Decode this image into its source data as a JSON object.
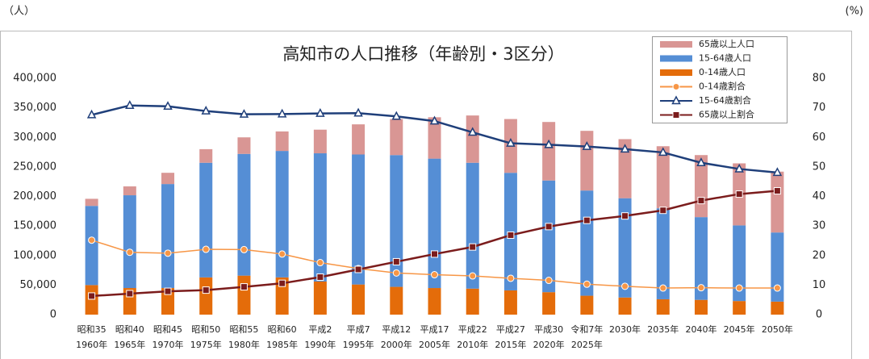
{
  "chart_data": {
    "type": "bar",
    "title": "高知市の人口推移（年齢別・3区分）",
    "left_unit": "（人）",
    "right_unit": "(%)",
    "categories": [
      [
        "昭和35",
        "1960年"
      ],
      [
        "昭和40",
        "1965年"
      ],
      [
        "昭和45",
        "1970年"
      ],
      [
        "昭和50",
        "1975年"
      ],
      [
        "昭和55",
        "1980年"
      ],
      [
        "昭和60",
        "1985年"
      ],
      [
        "平成2",
        "1990年"
      ],
      [
        "平成7",
        "1995年"
      ],
      [
        "平成12",
        "2000年"
      ],
      [
        "平成17",
        "2005年"
      ],
      [
        "平成22",
        "2010年"
      ],
      [
        "平成27",
        "2015年"
      ],
      [
        "平成30",
        "2020年"
      ],
      [
        "令和7年",
        "2025年"
      ],
      [
        "2030年"
      ],
      [
        "2035年"
      ],
      [
        "2040年"
      ],
      [
        "2045年"
      ],
      [
        "2050年"
      ]
    ],
    "series": [
      {
        "name": "65歳以上人口",
        "type": "bar",
        "color": "#d99694",
        "values": [
          12000,
          15000,
          19000,
          23000,
          28000,
          33000,
          40000,
          51000,
          61000,
          70000,
          80000,
          91000,
          99000,
          101000,
          100000,
          105000,
          105000,
          105000,
          103000
        ]
      },
      {
        "name": "15-64歳人口",
        "type": "bar",
        "color": "#558ed5",
        "values": [
          134000,
          157000,
          176000,
          194000,
          206000,
          214000,
          217000,
          220000,
          223000,
          219000,
          213000,
          199000,
          189000,
          178000,
          168000,
          154000,
          140000,
          128000,
          117000
        ]
      },
      {
        "name": "0-14歳人口",
        "type": "bar",
        "color": "#e46c0a",
        "values": [
          50000,
          45000,
          45000,
          63000,
          66000,
          63000,
          56000,
          51000,
          47000,
          45000,
          44000,
          41000,
          38000,
          32000,
          29000,
          26000,
          25000,
          23000,
          22000
        ]
      },
      {
        "name": "0-14歳割合",
        "type": "line",
        "axis": "y2",
        "marker": "circle",
        "color": "#f79646",
        "values": [
          25.2,
          21.1,
          20.8,
          22.1,
          22.0,
          20.5,
          17.6,
          15.6,
          14.1,
          13.5,
          13.1,
          12.3,
          11.6,
          10.3,
          9.6,
          9.0,
          9.1,
          9.0,
          9.0
        ]
      },
      {
        "name": "15-64歳割合",
        "type": "line",
        "axis": "y2",
        "marker": "triangle",
        "color": "#1f3f7a",
        "values": [
          67.6,
          70.8,
          70.5,
          68.9,
          67.8,
          67.9,
          68.1,
          68.2,
          67.1,
          65.5,
          61.7,
          58.0,
          57.5,
          56.9,
          56.0,
          54.9,
          51.4,
          49.3,
          48.1
        ]
      },
      {
        "name": "65歳以上割合",
        "type": "line",
        "axis": "y2",
        "marker": "square",
        "color": "#7b1c1c",
        "values": [
          6.3,
          7.1,
          7.9,
          8.3,
          9.4,
          10.6,
          12.7,
          15.3,
          17.9,
          20.5,
          22.9,
          26.9,
          29.8,
          31.9,
          33.4,
          35.3,
          38.6,
          40.8,
          41.9
        ]
      }
    ],
    "ylim": [
      0,
      400000
    ],
    "yticks": [
      0,
      {
        "value": 50000,
        "label": "50,000"
      },
      {
        "value": 100000,
        "label": "100,000"
      },
      {
        "value": 150000,
        "label": "150,000"
      },
      {
        "value": 200000,
        "label": "200,000"
      },
      {
        "value": 250000,
        "label": "250,000"
      },
      {
        "value": 300000,
        "label": "300,000"
      },
      {
        "value": 350000,
        "label": "350,000"
      },
      {
        "value": 400000,
        "label": "400,000"
      }
    ],
    "y2lim": [
      0,
      80
    ],
    "y2ticks": [
      0,
      10,
      20,
      30,
      40,
      50,
      60,
      70,
      80
    ],
    "grid": false,
    "legend": "top-right"
  }
}
